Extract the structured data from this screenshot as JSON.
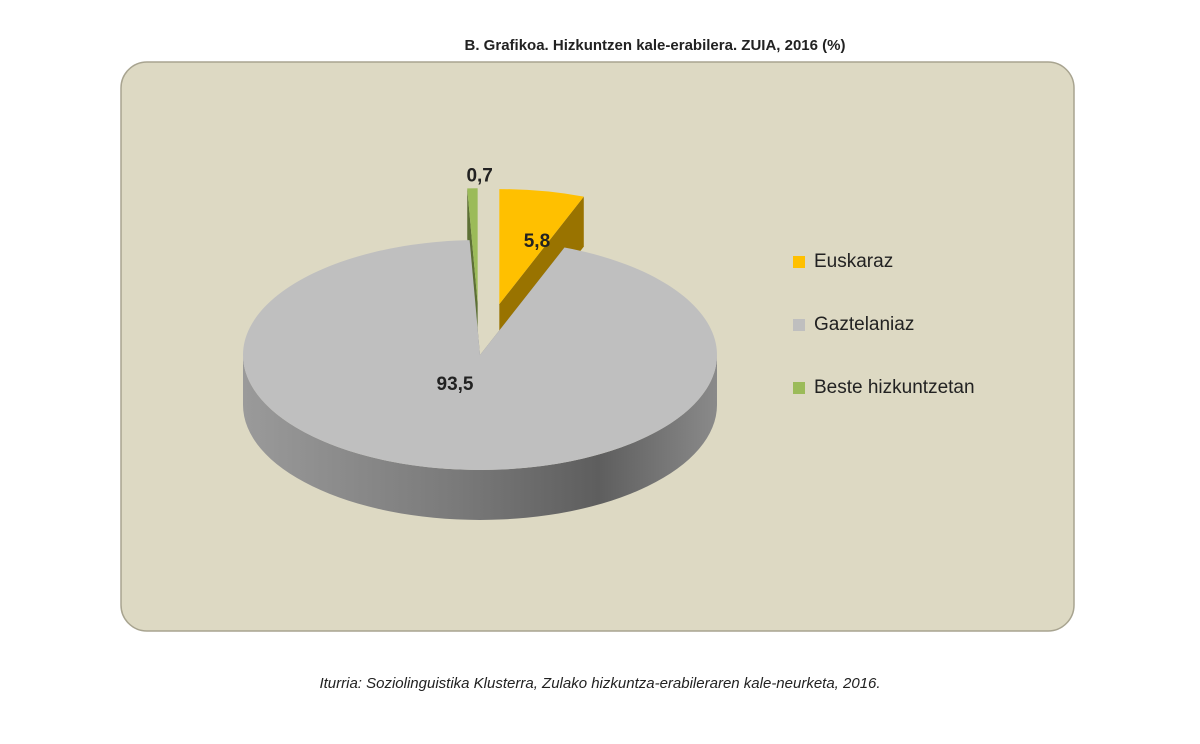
{
  "chart_data": {
    "type": "pie",
    "title": "B. Grafikoa. Hizkuntzen kale-erabilera. ZUIA, 2016 (%)",
    "categories": [
      "Euskaraz",
      "Gaztelaniaz",
      "Beste hizkuntzetan"
    ],
    "values": [
      5.8,
      93.5,
      0.7
    ],
    "value_labels": [
      "5,8",
      "93,5",
      "0,7"
    ],
    "colors": [
      "#ffc000",
      "#bfbfbf",
      "#9bbb59"
    ],
    "source": "Iturria: Soziolinguistika Klusterra, Zulako hizkuntza-erabileraren kale-neurketa, 2016."
  }
}
